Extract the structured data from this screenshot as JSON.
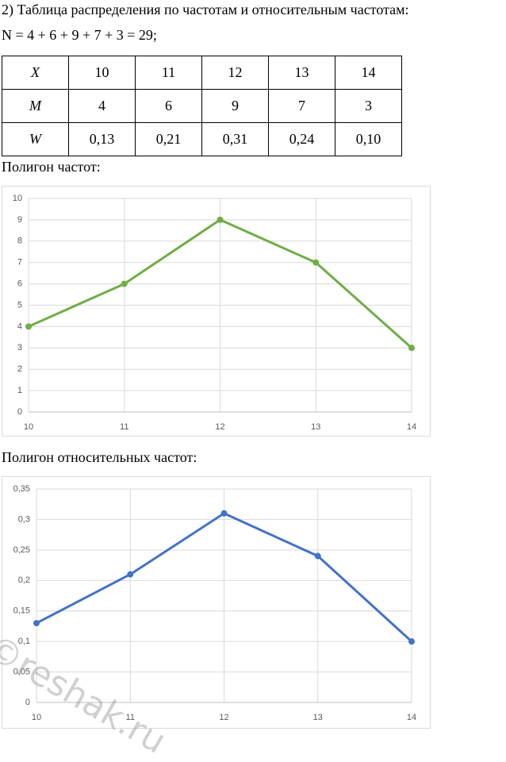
{
  "heading": "2) Таблица распределения по частотам и относительным частотам:",
  "formula": "N = 4 + 6 + 9 + 7 + 3 = 29;",
  "table": {
    "rows": [
      [
        "X",
        "10",
        "11",
        "12",
        "13",
        "14"
      ],
      [
        "M",
        "4",
        "6",
        "9",
        "7",
        "3"
      ],
      [
        "W",
        "0,13",
        "0,21",
        "0,31",
        "0,24",
        "0,10"
      ]
    ]
  },
  "caption1": "Полигон частот:",
  "caption2": "Полигон относительных частот:",
  "watermark": "©reshak.ru",
  "chart_data": [
    {
      "type": "line",
      "x": [
        10,
        11,
        12,
        13,
        14
      ],
      "xlim": [
        10,
        14
      ],
      "xticks": [
        10,
        11,
        12,
        13,
        14
      ],
      "ylim": [
        0,
        10
      ],
      "yticks": [
        0,
        1,
        2,
        3,
        4,
        5,
        6,
        7,
        8,
        9,
        10
      ],
      "grid": true,
      "series": [
        {
          "color": "#70ad47",
          "values": [
            4,
            6,
            9,
            7,
            3
          ]
        }
      ]
    },
    {
      "type": "line",
      "x": [
        10,
        11,
        12,
        13,
        14
      ],
      "xlim": [
        10,
        14
      ],
      "xticks": [
        10,
        11,
        12,
        13,
        14
      ],
      "ylim": [
        0,
        0.35
      ],
      "yticks": [
        0,
        {
          "value": 0.05,
          "label": "0,05"
        },
        {
          "value": 0.1,
          "label": "0,1"
        },
        {
          "value": 0.15,
          "label": "0,15"
        },
        {
          "value": 0.2,
          "label": "0,2"
        },
        {
          "value": 0.25,
          "label": "0,25"
        },
        {
          "value": 0.3,
          "label": "0,3"
        },
        {
          "value": 0.35,
          "label": "0,35"
        }
      ],
      "grid": true,
      "series": [
        {
          "color": "#4472c4",
          "values": [
            0.13,
            0.21,
            0.31,
            0.24,
            0.1
          ]
        }
      ]
    }
  ]
}
